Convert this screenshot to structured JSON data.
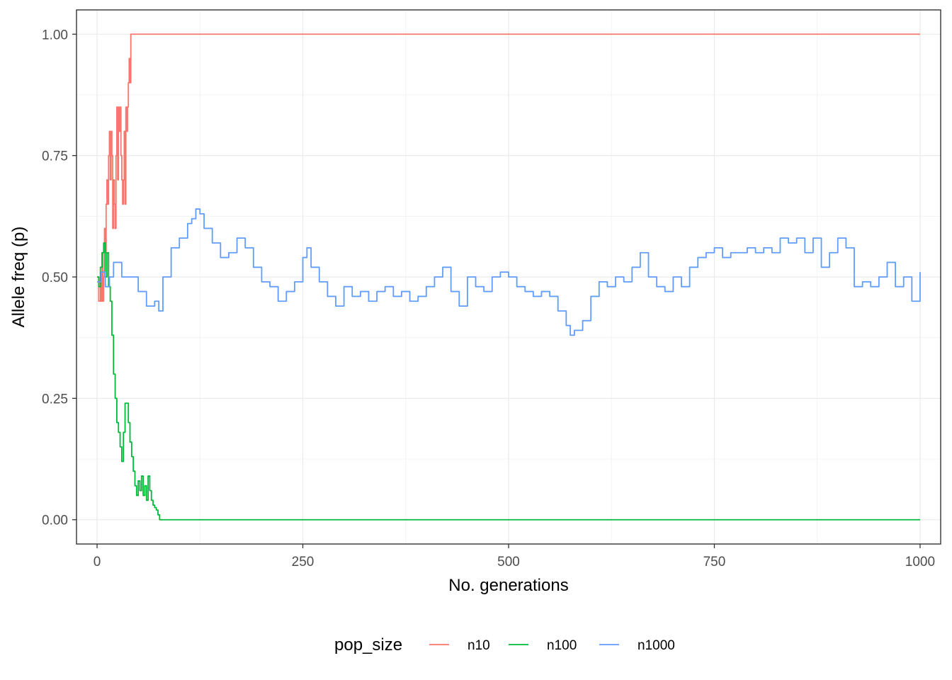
{
  "chart_data": {
    "type": "line",
    "xlabel": "No. generations",
    "ylabel": "Allele freq (p)",
    "xlim": [
      -25,
      1025
    ],
    "ylim": [
      -0.05,
      1.05
    ],
    "x_ticks": [
      0,
      250,
      500,
      750,
      1000
    ],
    "x_tick_labels": [
      "0",
      "250",
      "500",
      "750",
      "1000"
    ],
    "y_ticks": [
      0,
      0.25,
      0.5,
      0.75,
      1.0
    ],
    "y_tick_labels": [
      "0.00",
      "0.25",
      "0.50",
      "0.75",
      "1.00"
    ],
    "grid": true,
    "legend": {
      "title": "pop_size",
      "position": "bottom"
    },
    "series": [
      {
        "name": "n10",
        "color": "#F8766D",
        "x": [
          0,
          2,
          4,
          5,
          6,
          7,
          8,
          9,
          10,
          11,
          12,
          13,
          14,
          15,
          16,
          17,
          18,
          19,
          20,
          21,
          22,
          23,
          24,
          25,
          26,
          27,
          28,
          29,
          30,
          31,
          32,
          33,
          34,
          35,
          36,
          37,
          38,
          39,
          40,
          41,
          1000
        ],
        "y": [
          0.5,
          0.45,
          0.5,
          0.45,
          0.55,
          0.45,
          0.5,
          0.6,
          0.55,
          0.65,
          0.7,
          0.65,
          0.75,
          0.8,
          0.7,
          0.8,
          0.75,
          0.6,
          0.7,
          0.65,
          0.6,
          0.75,
          0.85,
          0.7,
          0.85,
          0.8,
          0.85,
          0.75,
          0.7,
          0.65,
          0.7,
          0.8,
          0.65,
          0.85,
          0.8,
          0.85,
          0.9,
          0.95,
          0.9,
          1.0,
          1.0
        ]
      },
      {
        "name": "n100",
        "color": "#00BA38",
        "x": [
          0,
          2,
          4,
          6,
          8,
          10,
          12,
          14,
          16,
          18,
          20,
          22,
          24,
          26,
          28,
          30,
          32,
          34,
          36,
          38,
          40,
          42,
          44,
          46,
          48,
          50,
          52,
          54,
          56,
          58,
          60,
          62,
          64,
          66,
          68,
          70,
          72,
          74,
          76,
          1000
        ],
        "y": [
          0.5,
          0.48,
          0.52,
          0.55,
          0.57,
          0.5,
          0.55,
          0.48,
          0.45,
          0.38,
          0.3,
          0.25,
          0.2,
          0.18,
          0.15,
          0.12,
          0.18,
          0.24,
          0.24,
          0.2,
          0.16,
          0.13,
          0.1,
          0.07,
          0.05,
          0.08,
          0.06,
          0.09,
          0.05,
          0.07,
          0.04,
          0.09,
          0.06,
          0.04,
          0.03,
          0.025,
          0.02,
          0.01,
          0.0,
          0.0
        ]
      },
      {
        "name": "n1000",
        "color": "#619CFF",
        "x": [
          0,
          5,
          10,
          15,
          20,
          30,
          40,
          50,
          60,
          70,
          75,
          80,
          90,
          100,
          110,
          115,
          120,
          125,
          130,
          140,
          150,
          160,
          170,
          180,
          190,
          200,
          210,
          220,
          230,
          240,
          250,
          255,
          260,
          270,
          280,
          290,
          300,
          310,
          320,
          330,
          340,
          350,
          360,
          370,
          380,
          390,
          400,
          410,
          420,
          430,
          440,
          450,
          460,
          470,
          480,
          490,
          500,
          510,
          520,
          530,
          540,
          550,
          560,
          570,
          575,
          580,
          590,
          600,
          610,
          620,
          630,
          640,
          650,
          660,
          670,
          680,
          690,
          700,
          710,
          720,
          730,
          740,
          750,
          760,
          770,
          780,
          790,
          800,
          810,
          820,
          830,
          840,
          850,
          860,
          870,
          880,
          890,
          900,
          910,
          920,
          930,
          940,
          950,
          960,
          970,
          980,
          990,
          1000
        ],
        "y": [
          0.49,
          0.51,
          0.48,
          0.5,
          0.53,
          0.5,
          0.5,
          0.47,
          0.44,
          0.45,
          0.43,
          0.5,
          0.56,
          0.58,
          0.61,
          0.62,
          0.64,
          0.63,
          0.6,
          0.57,
          0.54,
          0.55,
          0.58,
          0.56,
          0.52,
          0.49,
          0.48,
          0.45,
          0.47,
          0.49,
          0.54,
          0.56,
          0.52,
          0.49,
          0.46,
          0.44,
          0.48,
          0.46,
          0.47,
          0.45,
          0.47,
          0.48,
          0.46,
          0.47,
          0.45,
          0.46,
          0.48,
          0.5,
          0.52,
          0.47,
          0.44,
          0.5,
          0.48,
          0.47,
          0.5,
          0.51,
          0.5,
          0.48,
          0.47,
          0.46,
          0.47,
          0.46,
          0.43,
          0.4,
          0.38,
          0.39,
          0.41,
          0.46,
          0.49,
          0.48,
          0.5,
          0.49,
          0.52,
          0.55,
          0.5,
          0.48,
          0.47,
          0.5,
          0.48,
          0.52,
          0.54,
          0.55,
          0.56,
          0.54,
          0.55,
          0.55,
          0.56,
          0.55,
          0.56,
          0.55,
          0.58,
          0.57,
          0.58,
          0.55,
          0.58,
          0.52,
          0.55,
          0.58,
          0.56,
          0.48,
          0.49,
          0.48,
          0.5,
          0.53,
          0.48,
          0.5,
          0.45,
          0.51
        ]
      }
    ]
  }
}
